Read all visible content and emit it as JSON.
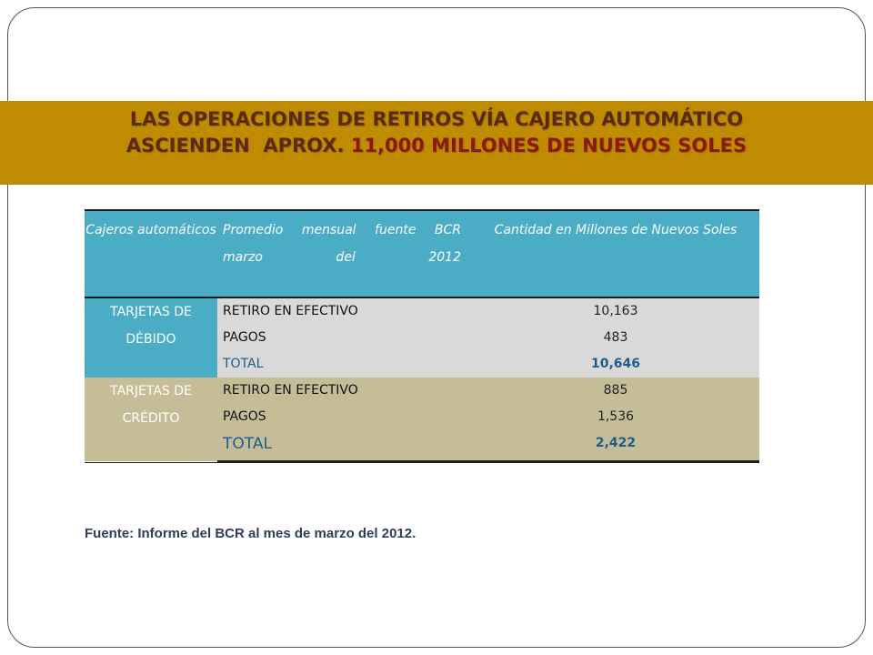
{
  "title": {
    "line1": "LAS OPERACIONES DE RETIROS VÍA CAJERO AUTOMÁTICO",
    "line2_prefix": "ASCIENDEN  APROX. ",
    "line2_accent": "11,000 MILLONES DE NUEVOS SOLES"
  },
  "table": {
    "headers": [
      "Cajeros automáticos",
      "Promedio mensual fuente BCR marzo del 2012",
      "Cantidad en Millones de Nuevos Soles"
    ],
    "groups": [
      {
        "label": "TARJETAS DE DÉBIDO",
        "rows": [
          {
            "concept": "RETIRO EN EFECTIVO",
            "value": "10,163"
          },
          {
            "concept": "PAGOS",
            "value": "483"
          },
          {
            "concept": "TOTAL",
            "value": "10,646"
          }
        ]
      },
      {
        "label": "TARJETAS DE CRÉDITO",
        "rows": [
          {
            "concept": "RETIRO EN EFECTIVO",
            "value": "885"
          },
          {
            "concept": "PAGOS",
            "value": "1,536"
          },
          {
            "concept": "TOTAL",
            "value": "2,422"
          }
        ]
      }
    ]
  },
  "source": "Fuente: Informe del BCR al mes de marzo del 2012.",
  "colors": {
    "title_band": "#bf8b00",
    "header_bg": "#4bacc6",
    "debito_bg": "#d9d9d9",
    "credito_bg": "#c4bd97",
    "total_text": "#1f5c8a"
  }
}
